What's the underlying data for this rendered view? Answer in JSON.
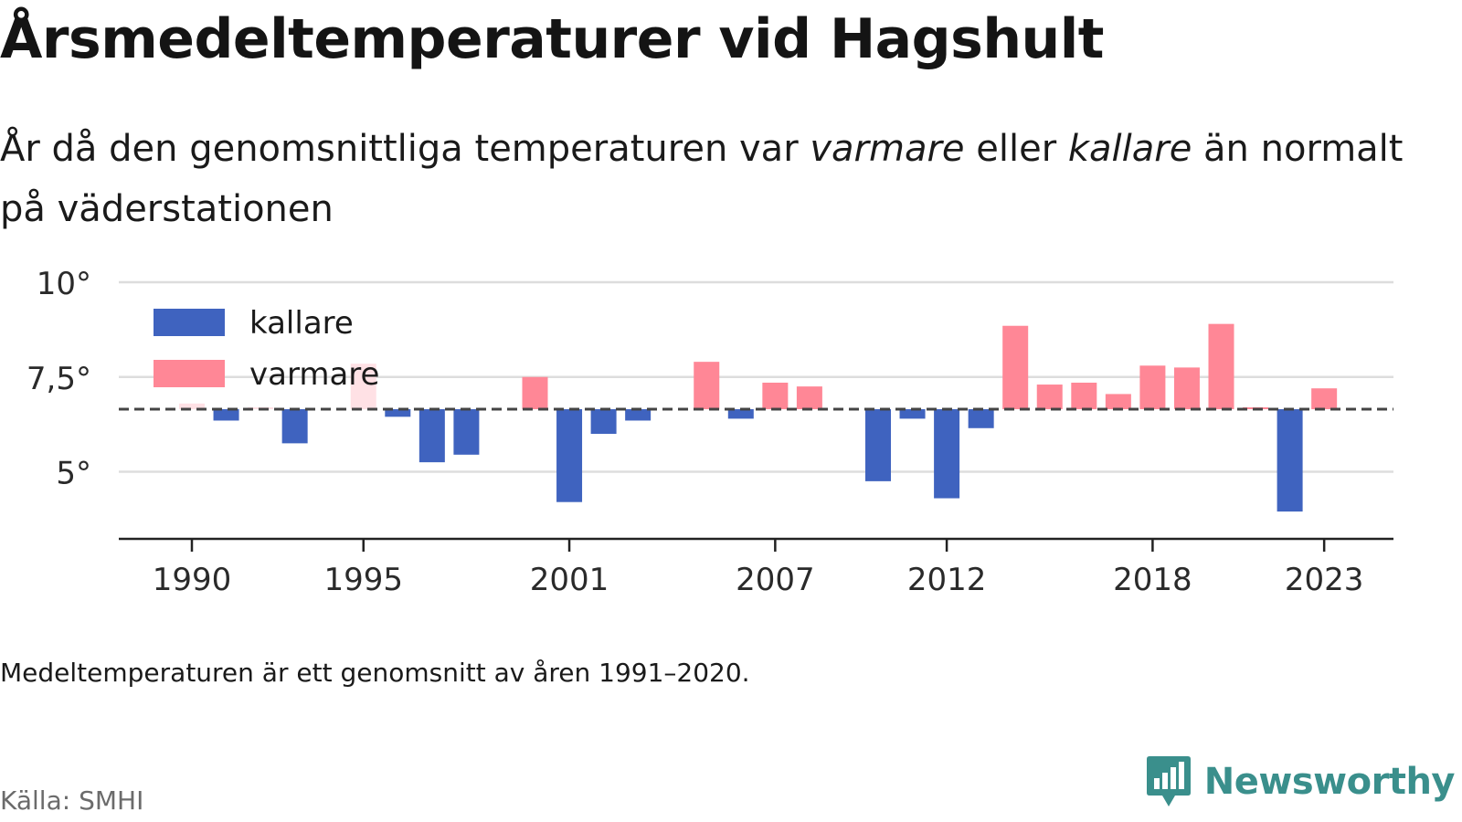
{
  "title": "Årsmedeltemperaturer vid Hagshult",
  "subtitle": {
    "part1": "År då den genomsnittliga temperaturen var ",
    "warm_word": "varmare",
    "part2": " eller ",
    "cold_word": "kallare",
    "part3": " än normalt på väderstationen"
  },
  "note": "Medeltemperaturen är ett genomsnitt av åren 1991–2020.",
  "source": "Källa: SMHI",
  "brand": "Newsworthy",
  "colors": {
    "cold": "#3f63bf",
    "warm": "#ff8796",
    "warm_faded": "#ffe1e5",
    "grid": "#dddddd",
    "baseline": "#444444",
    "axis": "#222222",
    "brand": "#3a8f8c"
  },
  "icons": {
    "brand": "newsworthy-logo-icon"
  },
  "chart_data": {
    "type": "bar",
    "reference": 6.65,
    "ylim": [
      3.2,
      10.3
    ],
    "yticks": [
      5,
      7.5,
      10
    ],
    "ytick_labels": [
      "5°",
      "7,5°",
      "10°"
    ],
    "xticks": [
      1990,
      1995,
      2001,
      2007,
      2012,
      2018,
      2023
    ],
    "grid": true,
    "legend_position": "top-left",
    "legend": [
      {
        "label": "kallare",
        "color": "#3f63bf"
      },
      {
        "label": "varmare",
        "color": "#ff8796"
      }
    ],
    "x": [
      1990,
      1991,
      1992,
      1993,
      1994,
      1995,
      1996,
      1997,
      1998,
      1999,
      2000,
      2001,
      2002,
      2003,
      2004,
      2005,
      2006,
      2007,
      2008,
      2009,
      2010,
      2011,
      2012,
      2013,
      2014,
      2015,
      2016,
      2017,
      2018,
      2019,
      2020,
      2021,
      2022,
      2023
    ],
    "values": [
      6.8,
      6.35,
      6.7,
      5.75,
      null,
      7.85,
      6.45,
      5.25,
      5.45,
      null,
      7.5,
      4.2,
      6.0,
      6.35,
      null,
      7.9,
      6.4,
      7.35,
      7.25,
      null,
      4.75,
      6.4,
      4.3,
      6.15,
      8.85,
      7.3,
      7.35,
      7.05,
      7.8,
      7.75,
      8.9,
      6.7,
      3.95,
      7.2
    ],
    "faded_years": [
      1990,
      1992,
      1995
    ]
  }
}
